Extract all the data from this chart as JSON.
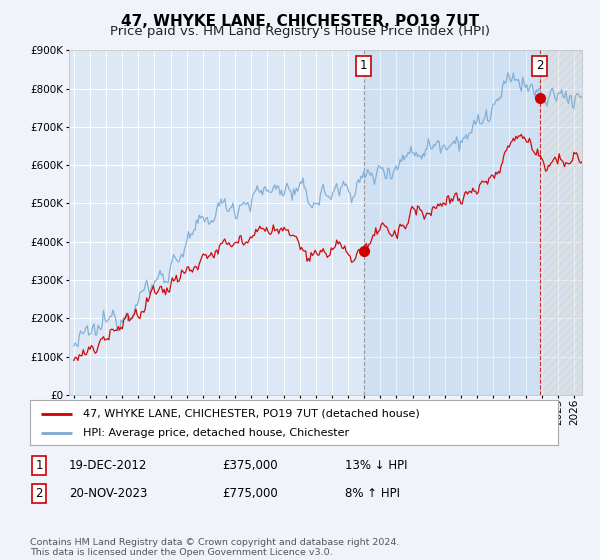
{
  "title": "47, WHYKE LANE, CHICHESTER, PO19 7UT",
  "subtitle": "Price paid vs. HM Land Registry's House Price Index (HPI)",
  "ylim": [
    0,
    900000
  ],
  "yticks": [
    0,
    100000,
    200000,
    300000,
    400000,
    500000,
    600000,
    700000,
    800000,
    900000
  ],
  "xlim_start": 1994.7,
  "xlim_end": 2026.5,
  "background_color": "#f0f4fa",
  "plot_bg_color": "#dce8f5",
  "grid_color": "#ffffff",
  "hpi_color": "#7aaad4",
  "price_color": "#cc0000",
  "marker1_year": 2012.97,
  "marker1_price": 375000,
  "marker2_year": 2023.88,
  "marker2_price": 775000,
  "legend_label_red": "47, WHYKE LANE, CHICHESTER, PO19 7UT (detached house)",
  "legend_label_blue": "HPI: Average price, detached house, Chichester",
  "table_row1": [
    "1",
    "19-DEC-2012",
    "£375,000",
    "13% ↓ HPI"
  ],
  "table_row2": [
    "2",
    "20-NOV-2023",
    "£775,000",
    "8% ↑ HPI"
  ],
  "footnote": "Contains HM Land Registry data © Crown copyright and database right 2024.\nThis data is licensed under the Open Government Licence v3.0.",
  "title_fontsize": 11,
  "subtitle_fontsize": 9.5,
  "tick_fontsize": 7.5,
  "figsize": [
    6.0,
    5.6
  ],
  "dpi": 100
}
